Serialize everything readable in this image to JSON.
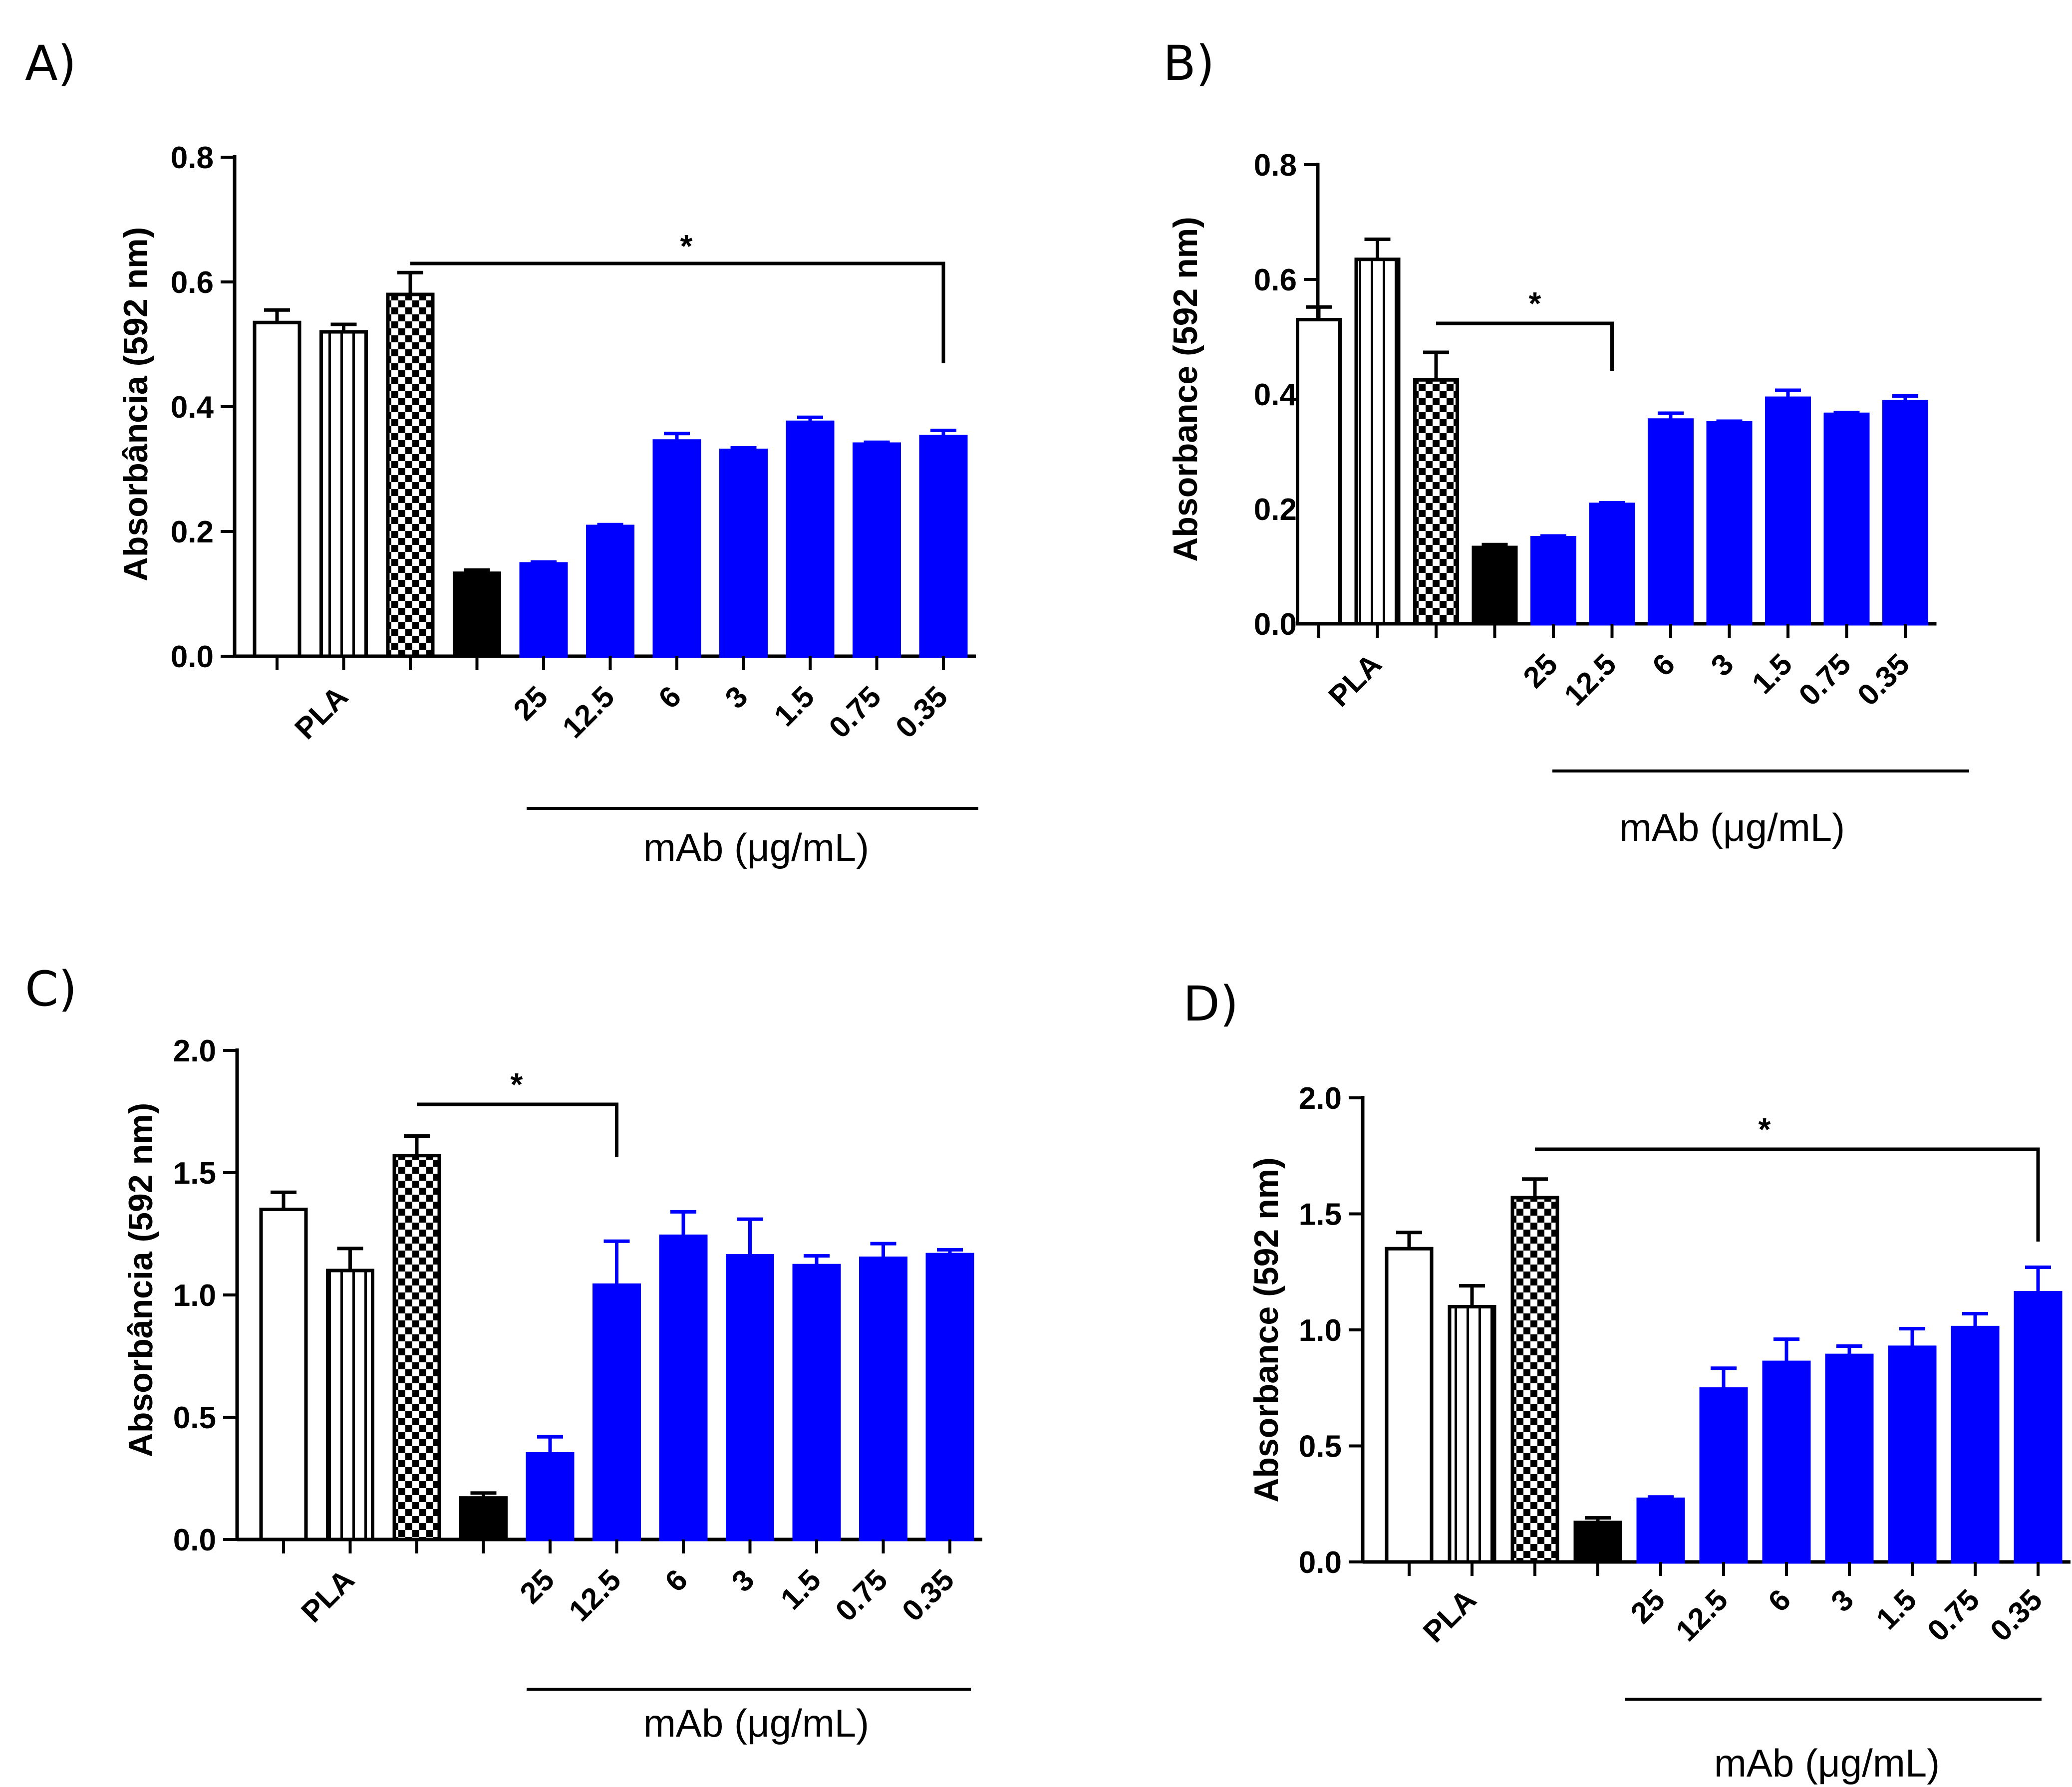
{
  "chart_data": [
    {
      "panel": "A)",
      "type": "bar",
      "ylabel": "Absorbância (592 nm)",
      "ylim": [
        0,
        0.8
      ],
      "yticks": [
        "0.0",
        "0.2",
        "0.4",
        "0.6",
        "0.8"
      ],
      "categories": [
        "",
        "PLA",
        "",
        "",
        "25",
        "12.5",
        "6",
        "3",
        "1.5",
        "0.75",
        "0.35"
      ],
      "values": [
        0.535,
        0.52,
        0.58,
        0.133,
        0.148,
        0.208,
        0.345,
        0.33,
        0.375,
        0.34,
        0.352
      ],
      "errors": [
        0.02,
        0.012,
        0.035,
        0.005,
        0.003,
        0.003,
        0.012,
        0.004,
        0.008,
        0.003,
        0.01
      ],
      "styles": [
        "white",
        "vstripe",
        "checker",
        "black",
        "blue",
        "blue",
        "blue",
        "blue",
        "blue",
        "blue",
        "blue"
      ],
      "group_label": "mAb (μg/mL)",
      "group_range": [
        4,
        10
      ],
      "significance": {
        "from": 2,
        "to": 10,
        "label": "*"
      }
    },
    {
      "panel": "B)",
      "type": "bar",
      "ylabel": "Absorbance (592 nm)",
      "ylim": [
        0,
        0.8
      ],
      "yticks": [
        "0.0",
        "0.2",
        "0.4",
        "0.6",
        "0.8"
      ],
      "categories": [
        "",
        "PLA",
        "",
        "",
        "25",
        "12.5",
        "6",
        "3",
        "1.5",
        "0.75",
        "0.35"
      ],
      "values": [
        0.53,
        0.635,
        0.425,
        0.133,
        0.15,
        0.208,
        0.355,
        0.35,
        0.393,
        0.365,
        0.387
      ],
      "errors": [
        0.022,
        0.035,
        0.048,
        0.005,
        0.003,
        0.003,
        0.012,
        0.003,
        0.014,
        0.003,
        0.01
      ],
      "styles": [
        "white",
        "vstripe",
        "checker",
        "black",
        "blue",
        "blue",
        "blue",
        "blue",
        "blue",
        "blue",
        "blue"
      ],
      "group_label": "mAb (μg/mL)",
      "group_range": [
        4,
        10
      ],
      "significance": {
        "from": 2,
        "to": 5,
        "label": "*"
      }
    },
    {
      "panel": "C)",
      "type": "bar",
      "ylabel": "Absorbância (592 nm)",
      "ylim": [
        0,
        2.0
      ],
      "yticks": [
        "0.0",
        "0.5",
        "1.0",
        "1.5",
        "2.0"
      ],
      "categories": [
        "",
        "PLA",
        "",
        "",
        "25",
        "12.5",
        "6",
        "3",
        "1.5",
        "0.75",
        "0.35"
      ],
      "values": [
        1.35,
        1.1,
        1.57,
        0.17,
        0.35,
        1.04,
        1.24,
        1.16,
        1.12,
        1.15,
        1.165
      ],
      "errors": [
        0.07,
        0.09,
        0.08,
        0.02,
        0.07,
        0.18,
        0.1,
        0.15,
        0.04,
        0.06,
        0.02
      ],
      "styles": [
        "white",
        "vstripe",
        "checker",
        "black",
        "blue",
        "blue",
        "blue",
        "blue",
        "blue",
        "blue",
        "blue"
      ],
      "group_label": "mAb (μg/mL)",
      "group_range": [
        4,
        10
      ],
      "significance": {
        "from": 2,
        "to": 5,
        "label": "*"
      }
    },
    {
      "panel": "D)",
      "type": "bar",
      "ylabel": "Absorbance (592 nm)",
      "ylim": [
        0,
        2.0
      ],
      "yticks": [
        "0.0",
        "0.5",
        "1.0",
        "1.5",
        "2.0"
      ],
      "categories": [
        "",
        "PLA",
        "",
        "",
        "25",
        "12.5",
        "6",
        "3",
        "1.5",
        "0.75",
        "0.35"
      ],
      "values": [
        1.35,
        1.1,
        1.57,
        0.17,
        0.27,
        0.745,
        0.86,
        0.89,
        0.925,
        1.01,
        1.16
      ],
      "errors": [
        0.07,
        0.09,
        0.08,
        0.02,
        0.01,
        0.09,
        0.1,
        0.04,
        0.08,
        0.06,
        0.11
      ],
      "styles": [
        "white",
        "vstripe",
        "checker",
        "black",
        "blue",
        "blue",
        "blue",
        "blue",
        "blue",
        "blue",
        "blue"
      ],
      "group_label": "mAb (μg/mL)",
      "group_range": [
        4,
        10
      ],
      "significance": {
        "from": 2,
        "to": 10,
        "label": "*"
      }
    }
  ],
  "colors": {
    "blue": "#0000ff",
    "black": "#000000",
    "white": "#ffffff"
  }
}
